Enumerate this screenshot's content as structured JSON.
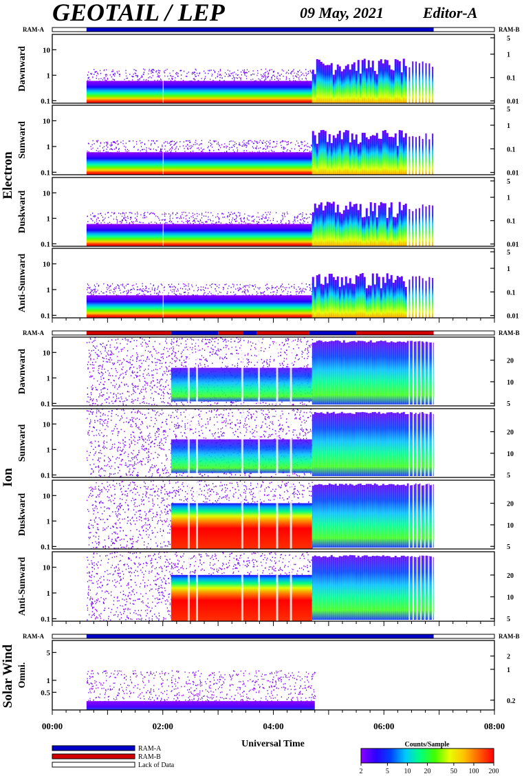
{
  "header": {
    "title": "GEOTAIL / LEP",
    "date": "09 May, 2021",
    "editor": "Editor-A"
  },
  "ram_labels": {
    "left": "RAM-A",
    "right": "RAM-B"
  },
  "groups": [
    {
      "label": "Electron",
      "panels": [
        "Dawnward",
        "Sunward",
        "Duskward",
        "Anti-Sunward"
      ]
    },
    {
      "label": "Ion",
      "panels": [
        "Dawnward",
        "Sunward",
        "Duskward",
        "Anti-Sunward"
      ]
    },
    {
      "label": "Solar Wind",
      "panels": [
        "Omni."
      ]
    }
  ],
  "x_axis": {
    "label": "Universal Time",
    "ticks": [
      "00:00",
      "02:00",
      "04:00",
      "06:00",
      "08:00"
    ]
  },
  "legend": {
    "items": [
      "RAM-A",
      "RAM-B",
      "Lack of Data"
    ],
    "colorbar_title": "Counts/Sample",
    "colorbar_ticks": [
      "2",
      "5",
      "10",
      "20",
      "50",
      "100",
      "200"
    ]
  },
  "colors": {
    "ram_a": "#0000c8",
    "ram_b": "#d20000",
    "gradient": [
      "#8a00ff",
      "#2d00ff",
      "#0040ff",
      "#00c8ff",
      "#00ff80",
      "#40ff00",
      "#e8ff00",
      "#ffc000",
      "#ff6000",
      "#ff0000"
    ]
  },
  "chart_data": {
    "type": "heatmap",
    "x_range_hours": [
      0,
      8
    ],
    "x_tick_hours": [
      0,
      2,
      4,
      6,
      8
    ],
    "data_coverage_hours": [
      0.62,
      6.9
    ],
    "colorbar": {
      "label": "Counts/Sample",
      "range": [
        2,
        200
      ],
      "scale": "log"
    },
    "ram_bar_segments": {
      "electron": [
        {
          "start": 0.62,
          "end": 6.9,
          "mode": "RAM-A"
        }
      ],
      "ion": [
        {
          "start": 0.62,
          "end": 2.15,
          "mode": "RAM-B"
        },
        {
          "start": 2.15,
          "end": 3.0,
          "mode": "RAM-A"
        },
        {
          "start": 3.0,
          "end": 3.45,
          "mode": "RAM-B"
        },
        {
          "start": 3.45,
          "end": 3.7,
          "mode": "RAM-A"
        },
        {
          "start": 3.7,
          "end": 4.65,
          "mode": "RAM-B"
        },
        {
          "start": 4.65,
          "end": 5.5,
          "mode": "RAM-A"
        },
        {
          "start": 5.5,
          "end": 6.9,
          "mode": "RAM-B"
        }
      ],
      "solar_wind": [
        {
          "start": 0.62,
          "end": 6.9,
          "mode": "RAM-A"
        }
      ]
    },
    "panels": [
      {
        "group": "Electron",
        "name": "Dawnward",
        "left_ticks": [
          {
            "v": 0.1,
            "t": "0.1"
          },
          {
            "v": 1,
            "t": "1"
          },
          {
            "v": 10,
            "t": "10"
          }
        ],
        "left_range": [
          0.08,
          40
        ],
        "right_ticks": [
          {
            "v": 0.01,
            "t": "0.01"
          },
          {
            "v": 0.1,
            "t": "0.1"
          },
          {
            "v": 1,
            "t": "1"
          },
          {
            "v": 5,
            "t": "5"
          }
        ],
        "right_range": [
          0.008,
          7
        ]
      },
      {
        "group": "Electron",
        "name": "Sunward",
        "left_ticks": [
          {
            "v": 0.1,
            "t": "0.1"
          },
          {
            "v": 1,
            "t": "1"
          },
          {
            "v": 10,
            "t": "10"
          }
        ],
        "left_range": [
          0.08,
          40
        ],
        "right_ticks": [
          {
            "v": 0.01,
            "t": "0.01"
          },
          {
            "v": 0.1,
            "t": "0.1"
          },
          {
            "v": 1,
            "t": "1"
          },
          {
            "v": 5,
            "t": "5"
          }
        ],
        "right_range": [
          0.008,
          7
        ]
      },
      {
        "group": "Electron",
        "name": "Duskward",
        "left_ticks": [
          {
            "v": 0.1,
            "t": "0.1"
          },
          {
            "v": 1,
            "t": "1"
          },
          {
            "v": 10,
            "t": "10"
          }
        ],
        "left_range": [
          0.08,
          40
        ],
        "right_ticks": [
          {
            "v": 0.01,
            "t": "0.01"
          },
          {
            "v": 0.1,
            "t": "0.1"
          },
          {
            "v": 1,
            "t": "1"
          },
          {
            "v": 5,
            "t": "5"
          }
        ],
        "right_range": [
          0.008,
          7
        ]
      },
      {
        "group": "Electron",
        "name": "Anti-Sunward",
        "left_ticks": [
          {
            "v": 0.1,
            "t": "0.1"
          },
          {
            "v": 1,
            "t": "1"
          },
          {
            "v": 10,
            "t": "10"
          }
        ],
        "left_range": [
          0.08,
          40
        ],
        "right_ticks": [
          {
            "v": 0.01,
            "t": "0.01"
          },
          {
            "v": 0.1,
            "t": "0.1"
          },
          {
            "v": 1,
            "t": "1"
          },
          {
            "v": 5,
            "t": "5"
          }
        ],
        "right_range": [
          0.008,
          7
        ]
      },
      {
        "group": "Ion",
        "name": "Dawnward",
        "left_ticks": [
          {
            "v": 0.1,
            "t": "0.1"
          },
          {
            "v": 1,
            "t": "1"
          },
          {
            "v": 10,
            "t": "10"
          }
        ],
        "left_range": [
          0.08,
          40
        ],
        "right_ticks": [
          {
            "v": 5,
            "t": "5"
          },
          {
            "v": 10,
            "t": "10"
          },
          {
            "v": 20,
            "t": "20"
          }
        ],
        "right_range": [
          4.6,
          42
        ]
      },
      {
        "group": "Ion",
        "name": "Sunward",
        "left_ticks": [
          {
            "v": 0.1,
            "t": "0.1"
          },
          {
            "v": 1,
            "t": "1"
          },
          {
            "v": 10,
            "t": "10"
          }
        ],
        "left_range": [
          0.08,
          40
        ],
        "right_ticks": [
          {
            "v": 5,
            "t": "5"
          },
          {
            "v": 10,
            "t": "10"
          },
          {
            "v": 20,
            "t": "20"
          }
        ],
        "right_range": [
          4.6,
          42
        ]
      },
      {
        "group": "Ion",
        "name": "Duskward",
        "left_ticks": [
          {
            "v": 0.1,
            "t": "0.1"
          },
          {
            "v": 1,
            "t": "1"
          },
          {
            "v": 10,
            "t": "10"
          }
        ],
        "left_range": [
          0.08,
          40
        ],
        "right_ticks": [
          {
            "v": 5,
            "t": "5"
          },
          {
            "v": 10,
            "t": "10"
          },
          {
            "v": 20,
            "t": "20"
          }
        ],
        "right_range": [
          4.6,
          42
        ]
      },
      {
        "group": "Ion",
        "name": "Anti-Sunward",
        "left_ticks": [
          {
            "v": 0.1,
            "t": "0.1"
          },
          {
            "v": 1,
            "t": "1"
          },
          {
            "v": 10,
            "t": "10"
          }
        ],
        "left_range": [
          0.08,
          40
        ],
        "right_ticks": [
          {
            "v": 5,
            "t": "5"
          },
          {
            "v": 10,
            "t": "10"
          },
          {
            "v": 20,
            "t": "20"
          }
        ],
        "right_range": [
          4.6,
          42
        ]
      },
      {
        "group": "Solar Wind",
        "name": "Omni.",
        "left_ticks": [
          {
            "v": 0.5,
            "t": "0.5"
          },
          {
            "v": 1,
            "t": "1"
          },
          {
            "v": 5,
            "t": "5"
          }
        ],
        "left_range": [
          0.18,
          10
        ],
        "right_ticks": [
          {
            "v": 0.2,
            "t": "0.2"
          },
          {
            "v": 1,
            "t": "1"
          },
          {
            "v": 2,
            "t": "2"
          }
        ],
        "right_range": [
          0.12,
          4.5
        ]
      }
    ],
    "features": {
      "electron_low_energy_band_hours": [
        0.62,
        4.7
      ],
      "electron_enhanced_interval_hours": [
        4.7,
        6.4
      ],
      "ion_high_flux_interval_hours": [
        2.15,
        4.7
      ],
      "ion_broad_interval_hours": [
        4.7,
        6.9
      ],
      "solar_wind_data_hours": [
        0.62,
        4.75
      ]
    }
  }
}
